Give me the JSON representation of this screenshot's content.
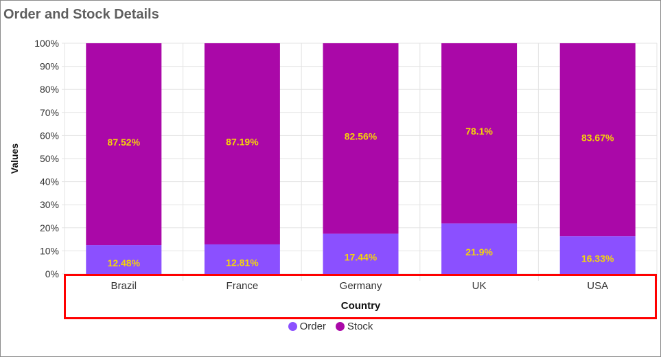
{
  "title": "Order and Stock Details",
  "chart_data": {
    "type": "bar",
    "stacked": "100%",
    "categories": [
      "Brazil",
      "France",
      "Germany",
      "UK",
      "USA"
    ],
    "series": [
      {
        "name": "Order",
        "color": "#8b50ff",
        "values": [
          12.48,
          12.81,
          17.44,
          21.9,
          16.33
        ],
        "labels": [
          "12.48%",
          "12.81%",
          "17.44%",
          "21.9%",
          "16.33%"
        ]
      },
      {
        "name": "Stock",
        "color": "#aa08a8",
        "values": [
          87.52,
          87.19,
          82.56,
          78.1,
          83.67
        ],
        "labels": [
          "87.52%",
          "87.19%",
          "82.56%",
          "78.1%",
          "83.67%"
        ]
      }
    ],
    "xlabel": "Country",
    "ylabel": "Values",
    "ylim": [
      0,
      100
    ],
    "yticks": [
      "0%",
      "10%",
      "20%",
      "30%",
      "40%",
      "50%",
      "60%",
      "70%",
      "80%",
      "90%",
      "100%"
    ],
    "grid": true,
    "legend_position": "bottom",
    "data_label_color": "#f5d30a",
    "highlight_color": "#ff0000"
  }
}
